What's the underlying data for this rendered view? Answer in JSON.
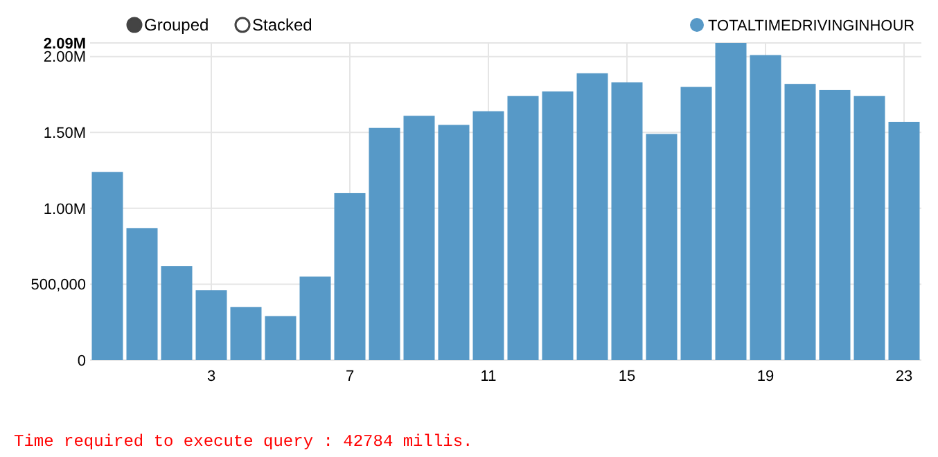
{
  "chart_data": {
    "type": "bar",
    "categories": [
      null,
      null,
      null,
      "3",
      null,
      null,
      null,
      "7",
      null,
      null,
      null,
      "11",
      null,
      null,
      null,
      "15",
      null,
      null,
      null,
      "19",
      null,
      null,
      null,
      "23"
    ],
    "series": [
      {
        "name": "TOTALTIMEDRIVINGINHOUR",
        "color": "#5799c7",
        "values": [
          1240000,
          870000,
          620000,
          460000,
          350000,
          290000,
          550000,
          1100000,
          1530000,
          1610000,
          1550000,
          1640000,
          1740000,
          1770000,
          1890000,
          1830000,
          1490000,
          1800000,
          2090000,
          2010000,
          1820000,
          1780000,
          1740000,
          1570000
        ]
      }
    ],
    "ylim": [
      0,
      2090000
    ],
    "yticks": [
      0,
      {
        "value": 500000,
        "label": "500,000"
      },
      {
        "value": 1000000,
        "label": "1.00M"
      },
      {
        "value": 1500000,
        "label": "1.50M"
      },
      {
        "value": 2000000,
        "label": "2.00M"
      },
      {
        "value": 2090000,
        "label": "2.09M"
      }
    ],
    "grid": true,
    "legend": "top right",
    "stacked": false,
    "annotations": [
      "Grouped",
      "Stacked",
      "Time required to execute query : 42784 millis."
    ]
  }
}
